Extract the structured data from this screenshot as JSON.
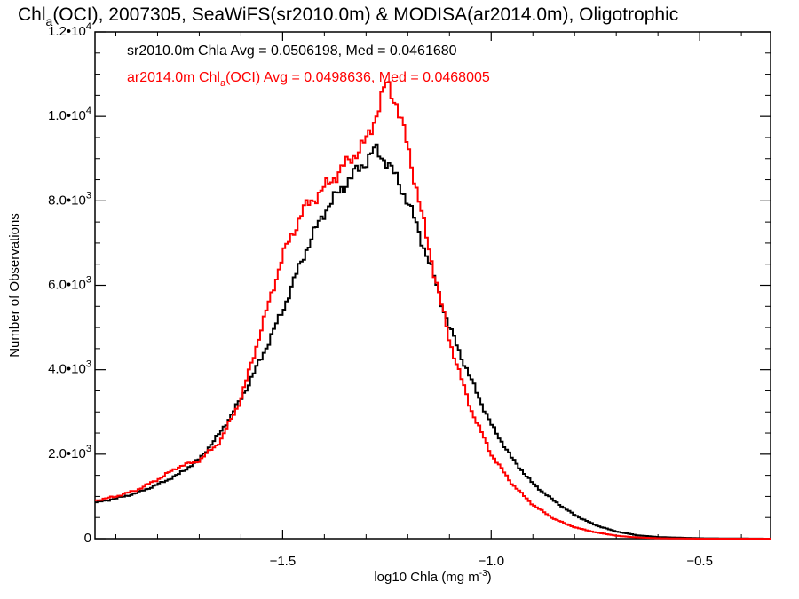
{
  "chart_data": {
    "type": "line",
    "title": "Chl",
    "title_sub": "a",
    "title_rest": "(OCI), 2007305, SeaWiFS(sr2010.0m) & MODISA(ar2014.0m), Oligotrophic",
    "xlabel": "log10 Chla (mg m",
    "xlabel_sup": "-3",
    "xlabel_end": ")",
    "ylabel": "Number of Observations",
    "xlim": [
      -1.95,
      -0.33
    ],
    "ylim": [
      0,
      12000
    ],
    "x_ticks": [
      {
        "value": -1.5,
        "label": "−1.5"
      },
      {
        "value": -1.0,
        "label": "−1.0"
      },
      {
        "value": -0.5,
        "label": "−0.5"
      }
    ],
    "y_ticks": [
      {
        "value": 0,
        "mant": "0",
        "exp": ""
      },
      {
        "value": 2000,
        "mant": "2.0•10",
        "exp": "3"
      },
      {
        "value": 4000,
        "mant": "4.0•10",
        "exp": "3"
      },
      {
        "value": 6000,
        "mant": "6.0•10",
        "exp": "3"
      },
      {
        "value": 8000,
        "mant": "8.0•10",
        "exp": "3"
      },
      {
        "value": 10000,
        "mant": "1.0•10",
        "exp": "4"
      },
      {
        "value": 12000,
        "mant": "1.2•10",
        "exp": "4"
      }
    ],
    "legend_placement": "top-left",
    "series": [
      {
        "label_main": "sr2010.0m Chla Avg = 0.0506198, Med = 0.0461680",
        "label_prefix": "",
        "label_sub": "",
        "label_suffix": "",
        "color": "#000000",
        "x": [
          -1.95,
          -1.9,
          -1.85,
          -1.8,
          -1.75,
          -1.7,
          -1.65,
          -1.6,
          -1.55,
          -1.5,
          -1.45,
          -1.4,
          -1.35,
          -1.3,
          -1.28,
          -1.25,
          -1.2,
          -1.15,
          -1.1,
          -1.05,
          -1.0,
          -0.95,
          -0.9,
          -0.85,
          -0.8,
          -0.75,
          -0.7,
          -0.65,
          -0.6,
          -0.5,
          -0.33
        ],
        "values": [
          850,
          950,
          1080,
          1280,
          1520,
          1880,
          2500,
          3300,
          4300,
          5400,
          6700,
          7750,
          8400,
          8950,
          9200,
          8950,
          8000,
          6600,
          5000,
          3800,
          2700,
          1900,
          1300,
          900,
          560,
          320,
          170,
          80,
          40,
          10,
          0
        ]
      },
      {
        "label_main": "",
        "label_prefix": "ar2014.0m Chl",
        "label_sub": "a",
        "label_suffix": "(OCI) Avg = 0.0498636, Med = 0.0468005",
        "color": "#ff0000",
        "x": [
          -1.95,
          -1.9,
          -1.85,
          -1.8,
          -1.75,
          -1.7,
          -1.65,
          -1.6,
          -1.55,
          -1.5,
          -1.45,
          -1.4,
          -1.35,
          -1.3,
          -1.27,
          -1.25,
          -1.23,
          -1.2,
          -1.15,
          -1.1,
          -1.05,
          -1.0,
          -0.95,
          -0.9,
          -0.85,
          -0.8,
          -0.75,
          -0.7,
          -0.65,
          -0.6,
          -0.5,
          -0.33
        ],
        "values": [
          900,
          1000,
          1150,
          1400,
          1700,
          1850,
          2300,
          3300,
          5000,
          6700,
          7800,
          8300,
          8850,
          9400,
          10200,
          10800,
          10400,
          9300,
          6900,
          4700,
          3100,
          2000,
          1300,
          800,
          470,
          270,
          150,
          70,
          30,
          10,
          0,
          0
        ]
      }
    ]
  }
}
